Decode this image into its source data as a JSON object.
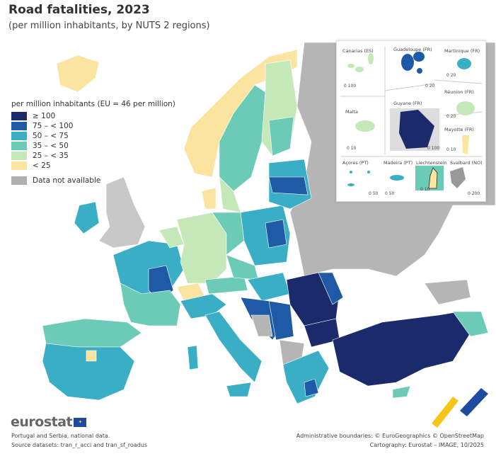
{
  "title": "Road fatalities, 2023",
  "subtitle": "(per million inhabitants, by NUTS 2 regions)",
  "legend": {
    "title": "per million inhabitants (EU = 46 per million)",
    "classes": [
      {
        "label": "≥ 100",
        "color": "#1b2a6b"
      },
      {
        "label": "75 – < 100",
        "color": "#1f5aa6"
      },
      {
        "label": "50 – < 75",
        "color": "#3aaec4"
      },
      {
        "label": "35 – < 50",
        "color": "#6ccbb7"
      },
      {
        "label": "25 – < 35",
        "color": "#c4e8b8"
      },
      {
        "label": "< 25",
        "color": "#fbe3a0"
      }
    ],
    "na": {
      "label": "Data not available",
      "color": "#b0b0b0"
    }
  },
  "insets": [
    {
      "name": "Canarias (ES)",
      "scale": "0  100",
      "class": "25 – < 35"
    },
    {
      "name": "Guadeloupe (FR)",
      "scale": "0  20",
      "class": "75 – < 100"
    },
    {
      "name": "Martinique (FR)",
      "scale": "0  20",
      "class": "50 – < 75"
    },
    {
      "name": "Réunion (FR)",
      "scale": "0  20",
      "class": "25 – < 35"
    },
    {
      "name": "Malta",
      "scale": "0  10",
      "class": "25 – < 35"
    },
    {
      "name": "Guyane (FR)",
      "scale": "0  100",
      "class": "≥ 100"
    },
    {
      "name": "Mayotte (FR)",
      "scale": "0 10",
      "class": "< 25"
    },
    {
      "name": "Açores (PT)",
      "scale": "0  50",
      "class": "50 – < 75"
    },
    {
      "name": "Madeira (PT)",
      "scale": "0  50",
      "class": "50 – < 75"
    },
    {
      "name": "Liechtenstein",
      "scale": "0  10",
      "class": "< 25"
    },
    {
      "name": "Svalbard (NO)",
      "scale": "0  200",
      "class": "Data not available"
    }
  ],
  "footer": {
    "logo": "eurostat",
    "note1": "Portugal and Serbia, national data.",
    "note2": "Source datasets: tran_r_acci and tran_sf_roadus",
    "credit1": "Administrative boundaries: © EuroGeographics © OpenStreetMap",
    "credit2": "Cartography: Eurostat – IMAGE, 10/2025"
  }
}
